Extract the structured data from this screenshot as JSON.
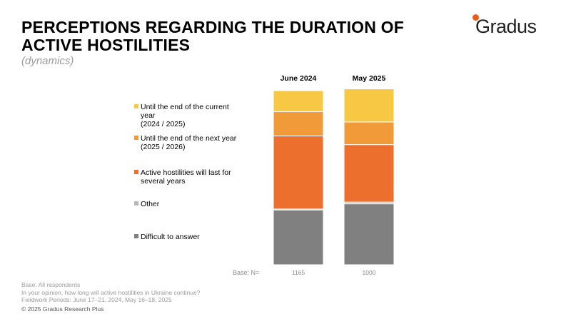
{
  "header": {
    "title": "PERCEPTIONS REGARDING THE DURATION OF ACTIVE HOSTILITIES",
    "subtitle": "(dynamics)"
  },
  "brand": {
    "logo_text": "Gradus",
    "accent": "#ea5b1c"
  },
  "base": {
    "label": "Base: N="
  },
  "footer": {
    "lines": [
      "Base: All respondents",
      "In your opinion, how long will active hostilities in Ukraine continue?",
      "Fieldwork Periods: June 17–21, 2024, May 16–18, 2025"
    ],
    "copyright": "© 2025 Gradus Research Plus"
  },
  "chart_data": {
    "type": "bar",
    "stacked": true,
    "percent_stacked": true,
    "categories": [
      "June 2024",
      "May 2025"
    ],
    "base_n": [
      "1165",
      "1000"
    ],
    "ylim": [
      0,
      100
    ],
    "grid": false,
    "legend_position": "left",
    "series": [
      {
        "name": "Difficult to answer",
        "lines": [
          "Difficult to answer"
        ],
        "color": "#808080",
        "values": [
          31.5,
          35
        ]
      },
      {
        "name": "Other",
        "lines": [
          "Other"
        ],
        "color": "#b7b7b7",
        "values": [
          0.5,
          1
        ]
      },
      {
        "name": "Active hostilities will last for several years",
        "lines": [
          "Active hostilities will last for",
          "several years"
        ],
        "color": "#ec6f2e",
        "values": [
          42,
          33
        ]
      },
      {
        "name": "Until the end of the next year (2025 / 2026)",
        "lines": [
          "Until the end of the next year",
          "(2025 / 2026)"
        ],
        "color": "#f19a3a",
        "values": [
          14,
          13
        ]
      },
      {
        "name": "Until the end of the current year (2024 / 2025)",
        "lines": [
          "Until the end of the current",
          "year",
          "(2024 / 2025)"
        ],
        "color": "#f6c843",
        "values": [
          12,
          19
        ]
      }
    ]
  }
}
